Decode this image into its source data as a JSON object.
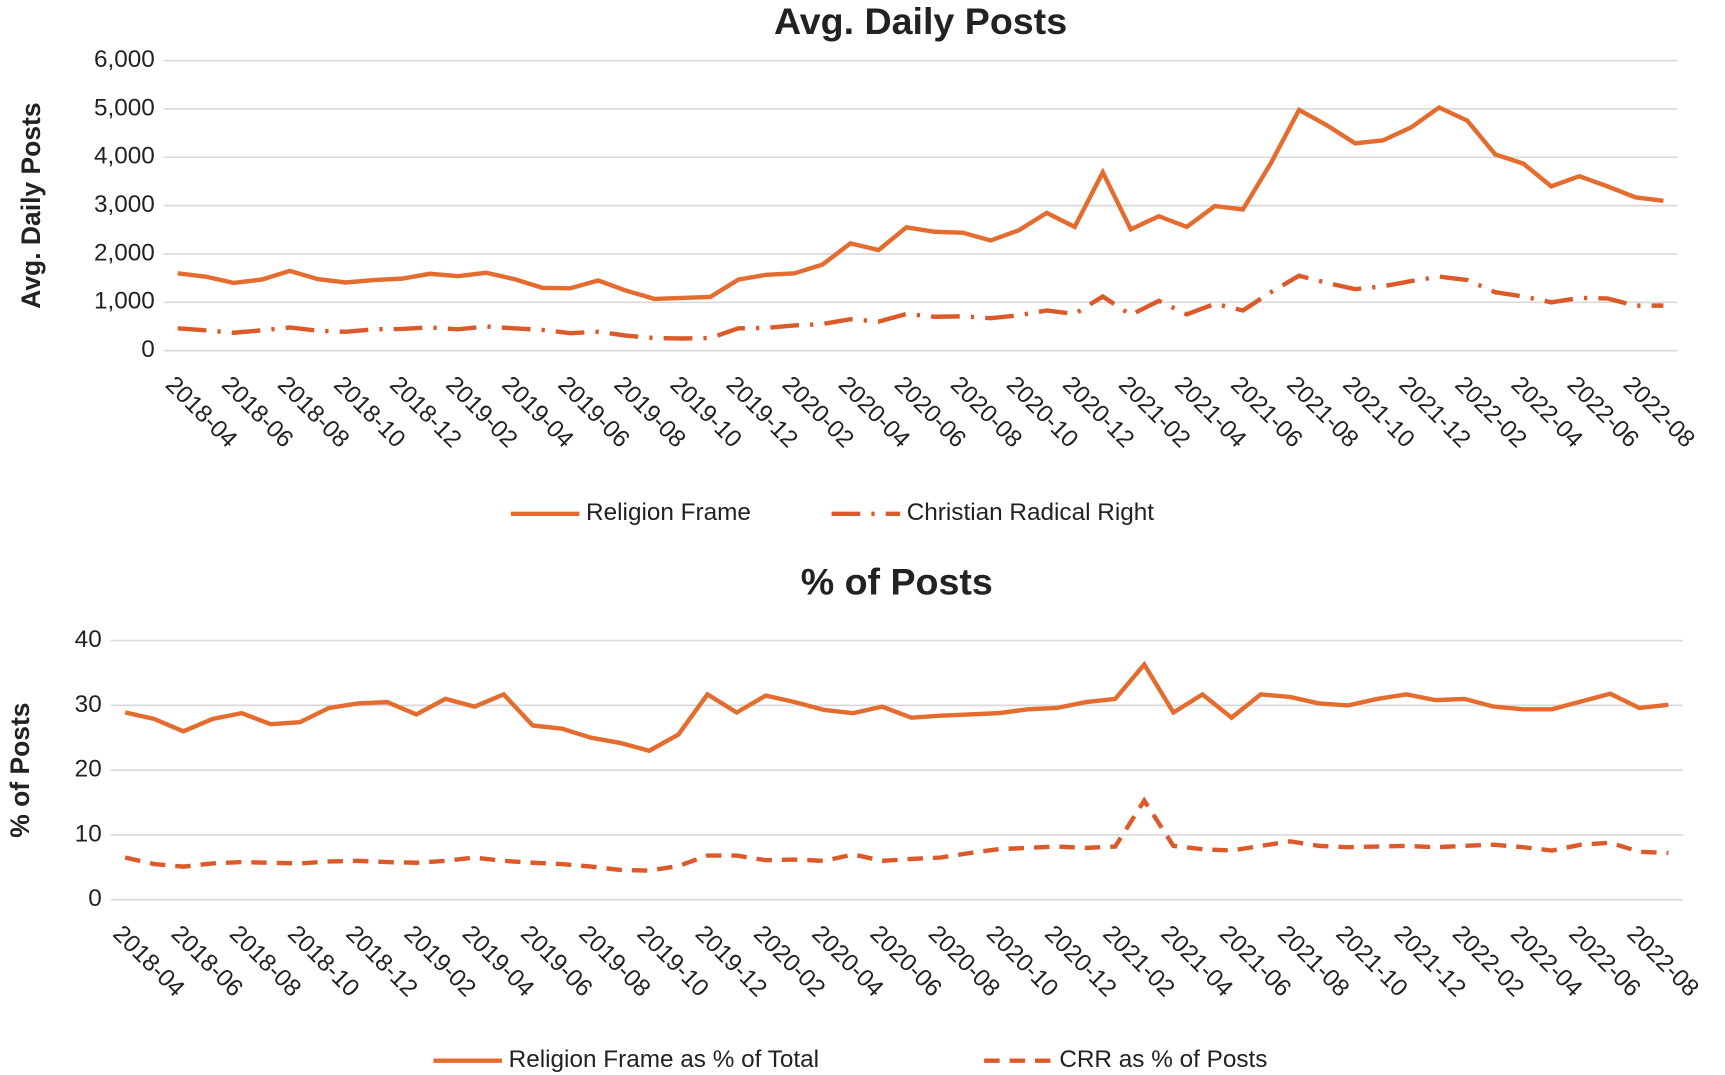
{
  "chart_data": [
    {
      "type": "line",
      "title": "Avg. Daily Posts",
      "y_label": "Avg. Daily Posts",
      "categories": [
        "2018-04",
        null,
        "2018-06",
        null,
        "2018-08",
        null,
        "2018-10",
        null,
        "2018-12",
        null,
        "2019-02",
        null,
        "2019-04",
        null,
        "2019-06",
        null,
        "2019-08",
        null,
        "2019-10",
        null,
        "2019-12",
        null,
        "2020-02",
        null,
        "2020-04",
        null,
        "2020-06",
        null,
        "2020-08",
        null,
        "2020-10",
        null,
        "2020-12",
        null,
        "2021-02",
        null,
        "2021-04",
        null,
        "2021-06",
        null,
        "2021-08",
        null,
        "2021-10",
        null,
        "2021-12",
        null,
        "2022-02",
        null,
        "2022-04",
        null,
        "2022-06",
        null,
        "2022-08",
        null
      ],
      "series": [
        {
          "name": "Religion Frame",
          "color": "#e46c2e",
          "dash": "solid",
          "values": [
            1600,
            1530,
            1400,
            1470,
            1650,
            1480,
            1410,
            1460,
            1490,
            1590,
            1540,
            1610,
            1480,
            1300,
            1290,
            1450,
            1240,
            1070,
            1090,
            1110,
            1470,
            1570,
            1600,
            1780,
            2220,
            2080,
            2550,
            2460,
            2440,
            2280,
            2490,
            2850,
            2560,
            3690,
            2510,
            2780,
            2560,
            2990,
            2920,
            3880,
            4980,
            4660,
            4290,
            4350,
            4620,
            5030,
            4760,
            4060,
            3870,
            3400,
            3610,
            3400,
            3170,
            3100
          ]
        },
        {
          "name": "Christian Radical Right",
          "color": "#dc5a2a",
          "dash": "long-dash-dot",
          "values": [
            460,
            420,
            370,
            420,
            480,
            410,
            390,
            440,
            450,
            480,
            440,
            500,
            460,
            430,
            360,
            390,
            310,
            260,
            250,
            260,
            460,
            470,
            520,
            550,
            650,
            600,
            760,
            700,
            710,
            670,
            730,
            830,
            760,
            1120,
            740,
            1030,
            750,
            970,
            830,
            1210,
            1550,
            1400,
            1270,
            1330,
            1440,
            1530,
            1460,
            1210,
            1120,
            1000,
            1090,
            1080,
            930,
            930
          ]
        }
      ],
      "ylim": [
        0,
        6000
      ],
      "yticks": [
        0,
        {
          "value": 1000,
          "label": "1,000"
        },
        {
          "value": 2000,
          "label": "2,000"
        },
        {
          "value": 3000,
          "label": "3,000"
        },
        {
          "value": 4000,
          "label": "4,000"
        },
        {
          "value": 5000,
          "label": "5,000"
        },
        {
          "value": 6000,
          "label": "6,000"
        }
      ],
      "grid": true,
      "legend": "bottom"
    },
    {
      "type": "line",
      "title": "% of Posts",
      "y_label": "% of Posts",
      "categories": [
        "2018-04",
        null,
        "2018-06",
        null,
        "2018-08",
        null,
        "2018-10",
        null,
        "2018-12",
        null,
        "2019-02",
        null,
        "2019-04",
        null,
        "2019-06",
        null,
        "2019-08",
        null,
        "2019-10",
        null,
        "2019-12",
        null,
        "2020-02",
        null,
        "2020-04",
        null,
        "2020-06",
        null,
        "2020-08",
        null,
        "2020-10",
        null,
        "2020-12",
        null,
        "2021-02",
        null,
        "2021-04",
        null,
        "2021-06",
        null,
        "2021-08",
        null,
        "2021-10",
        null,
        "2021-12",
        null,
        "2022-02",
        null,
        "2022-04",
        null,
        "2022-06",
        null,
        "2022-08",
        null
      ],
      "series": [
        {
          "name": "Religion Frame as % of Total",
          "color": "#e46c2e",
          "dash": "solid",
          "values": [
            28.9,
            27.9,
            26.0,
            27.9,
            28.8,
            27.1,
            27.4,
            29.6,
            30.3,
            30.5,
            28.6,
            31.0,
            29.8,
            31.7,
            26.9,
            26.4,
            25.0,
            24.2,
            23.0,
            25.5,
            31.7,
            28.9,
            31.5,
            30.5,
            29.3,
            28.8,
            29.8,
            28.1,
            28.4,
            28.6,
            28.8,
            29.4,
            29.6,
            30.5,
            31.0,
            36.3,
            28.9,
            31.7,
            28.1,
            31.7,
            31.3,
            30.3,
            30.0,
            31.0,
            31.7,
            30.8,
            31.0,
            29.8,
            29.4,
            29.4,
            30.6,
            31.8,
            29.6,
            30.1
          ]
        },
        {
          "name": "CRR as % of Posts",
          "color": "#dc5a2a",
          "dash": "dash",
          "values": [
            6.5,
            5.5,
            5.1,
            5.6,
            5.8,
            5.7,
            5.6,
            5.9,
            6.0,
            5.8,
            5.7,
            6.0,
            6.5,
            6.0,
            5.7,
            5.5,
            5.1,
            4.6,
            4.5,
            5.2,
            6.8,
            6.8,
            6.1,
            6.2,
            6.0,
            7.0,
            6.0,
            6.3,
            6.5,
            7.2,
            7.8,
            8.0,
            8.2,
            8.0,
            8.2,
            15.3,
            8.3,
            7.8,
            7.6,
            8.3,
            9.0,
            8.3,
            8.1,
            8.2,
            8.3,
            8.1,
            8.3,
            8.5,
            8.1,
            7.6,
            8.5,
            8.8,
            7.4,
            7.2
          ]
        }
      ],
      "ylim": [
        0,
        40
      ],
      "yticks": [
        0,
        10,
        20,
        30,
        40
      ],
      "grid": true,
      "legend": "bottom"
    }
  ]
}
